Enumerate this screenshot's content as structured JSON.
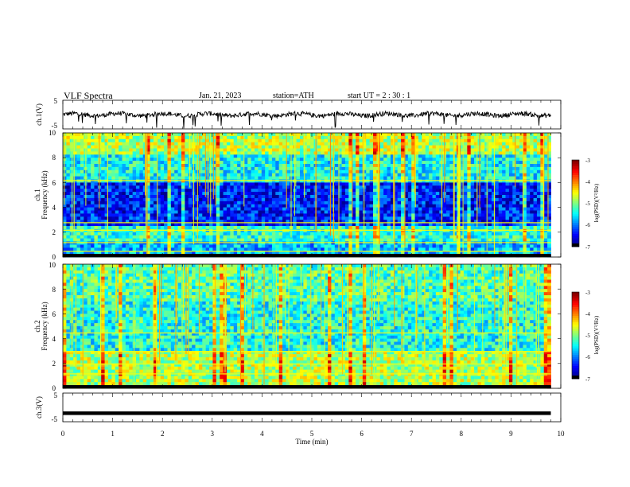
{
  "header": {
    "title": "VLF  Spectra",
    "date": "Jan. 21, 2023",
    "station": "station=ATH",
    "start": "start  UT  =   2  : 30 : 1"
  },
  "chart_data": [
    {
      "type": "line",
      "ylabel": "ch.1(V)",
      "ylim": [
        -5,
        5
      ],
      "yticks": [
        "5",
        "-5"
      ],
      "xlim": [
        0,
        10
      ],
      "baseline_value": 0
    },
    {
      "type": "heatmap",
      "ylabel_line1": "ch.1",
      "ylabel_line2": "Frequency  (kHz)",
      "ylim": [
        0,
        10
      ],
      "yticks": [
        "10",
        "8",
        "6",
        "4",
        "2",
        "0"
      ],
      "xlim": [
        0,
        10
      ],
      "data_end_min": 9.8,
      "colorbar": {
        "label": "log(PSD)(V²/Hz)",
        "range": [
          -7,
          -3
        ],
        "ticks": [
          "-3",
          "-4",
          "-5",
          "-6",
          "-7"
        ]
      }
    },
    {
      "type": "heatmap",
      "ylabel_line1": "ch.2",
      "ylabel_line2": "Frequency  (kHz)",
      "ylim": [
        0,
        10
      ],
      "yticks": [
        "10",
        "8",
        "6",
        "4",
        "2",
        "0"
      ],
      "xlim": [
        0,
        10
      ],
      "data_end_min": 9.8,
      "colorbar": {
        "label": "log(PSD)(V²/Hz)",
        "range": [
          -7,
          -3
        ],
        "ticks": [
          "-3",
          "-4",
          "-5",
          "-6",
          "-7"
        ]
      }
    },
    {
      "type": "line",
      "ylabel": "ch.3(V)",
      "ylim": [
        -5,
        5
      ],
      "yticks": [
        "5",
        "-5"
      ],
      "xlim": [
        0,
        10
      ],
      "xlabel": "Time  (min)",
      "xticks": [
        "0",
        "1",
        "2",
        "3",
        "4",
        "5",
        "6",
        "7",
        "8",
        "9",
        "10"
      ],
      "baseline_value": -2
    }
  ]
}
